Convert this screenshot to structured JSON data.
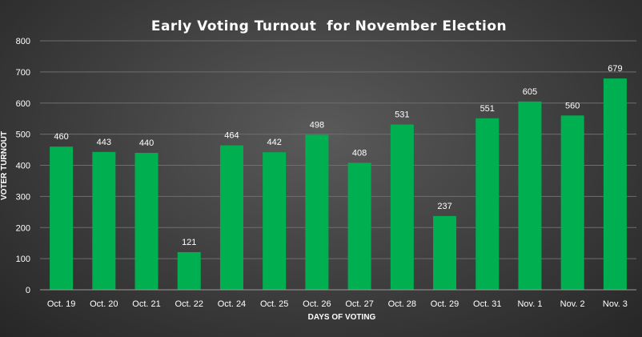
{
  "chart_data": {
    "type": "bar",
    "title": "Early Voting Turnout  for November Election",
    "xlabel": "DAYS OF VOTING",
    "ylabel": "VOTER TURNOUT",
    "categories": [
      "Oct. 19",
      "Oct. 20",
      "Oct. 21",
      "Oct. 22",
      "Oct. 24",
      "Oct. 25",
      "Oct. 26",
      "Oct. 27",
      "Oct. 28",
      "Oct. 29",
      "Oct. 31",
      "Nov. 1",
      "Nov. 2",
      "Nov. 3"
    ],
    "values": [
      460,
      443,
      440,
      121,
      464,
      442,
      498,
      408,
      531,
      237,
      551,
      605,
      560,
      679
    ],
    "ylim": [
      0,
      800
    ],
    "yticks": [
      0,
      100,
      200,
      300,
      400,
      500,
      600,
      700,
      800
    ],
    "grid": true,
    "legend": "none",
    "bar_color": "#00b050"
  }
}
